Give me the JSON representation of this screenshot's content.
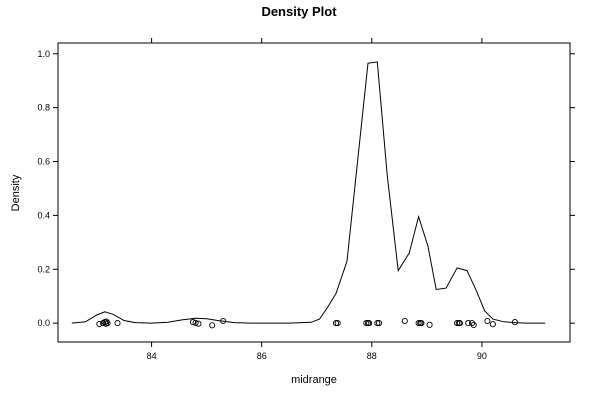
{
  "chart_data": {
    "type": "line",
    "title": "Density Plot",
    "xlabel": "midrange",
    "ylabel": "Density",
    "xlim": [
      82.3,
      91.6
    ],
    "ylim": [
      -0.07,
      1.04
    ],
    "x_ticks": [
      84,
      86,
      88,
      90
    ],
    "x_tick_labels": [
      "84",
      "86",
      "88",
      "90"
    ],
    "y_ticks": [
      0.0,
      0.2,
      0.4,
      0.6,
      0.8,
      1.0
    ],
    "y_tick_labels": [
      "0.0",
      "0.2",
      "0.4",
      "0.6",
      "0.8",
      "1.0"
    ],
    "grid": false,
    "series": [
      {
        "type": "line",
        "x": [
          82.55,
          82.8,
          83.0,
          83.15,
          83.3,
          83.5,
          83.7,
          84.0,
          84.3,
          84.55,
          84.8,
          85.0,
          85.2,
          85.5,
          85.8,
          86.0,
          86.5,
          86.9,
          87.05,
          87.2,
          87.35,
          87.55,
          87.72,
          87.93,
          88.1,
          88.28,
          88.48,
          88.68,
          88.85,
          89.02,
          89.17,
          89.35,
          89.55,
          89.73,
          89.9,
          90.05,
          90.2,
          90.4,
          90.6,
          90.8,
          91.15
        ],
        "y": [
          0.0,
          0.005,
          0.03,
          0.042,
          0.033,
          0.01,
          0.002,
          0.0,
          0.003,
          0.012,
          0.018,
          0.016,
          0.01,
          0.002,
          0.0,
          0.0,
          0.0,
          0.003,
          0.015,
          0.06,
          0.11,
          0.23,
          0.56,
          0.965,
          0.97,
          0.55,
          0.195,
          0.26,
          0.395,
          0.285,
          0.125,
          0.13,
          0.205,
          0.195,
          0.12,
          0.045,
          0.015,
          0.005,
          0.002,
          0.0,
          0.0
        ]
      },
      {
        "type": "rug",
        "x": [
          83.05,
          83.12,
          83.15,
          83.17,
          83.18,
          83.2,
          83.38,
          84.75,
          84.8,
          84.85,
          85.1,
          85.3,
          87.35,
          87.38,
          87.9,
          87.93,
          87.95,
          88.1,
          88.13,
          88.6,
          88.85,
          88.88,
          88.9,
          89.05,
          89.55,
          89.58,
          89.6,
          89.75,
          89.82,
          89.85,
          90.1,
          90.2,
          90.6
        ],
        "y": [
          -0.003,
          0.0,
          0.004,
          -0.002,
          0.006,
          0.0,
          0.0,
          0.004,
          0.001,
          -0.002,
          -0.008,
          0.008,
          0.0,
          0.0,
          0.0,
          0.0,
          0.0,
          0.0,
          0.0,
          0.008,
          0.0,
          0.0,
          0.0,
          -0.006,
          0.0,
          0.0,
          0.0,
          0.0,
          0.0,
          -0.007,
          0.008,
          -0.004,
          0.004
        ]
      }
    ]
  }
}
